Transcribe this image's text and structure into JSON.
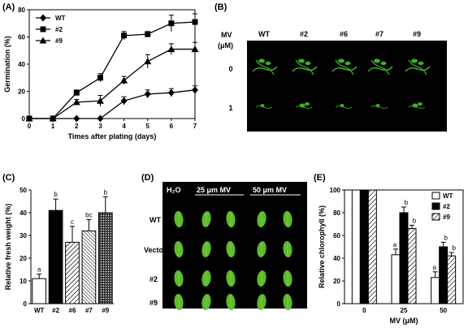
{
  "panel_labels": {
    "A": "(A)",
    "B": "(B)",
    "C": "(C)",
    "D": "(D)",
    "E": "(E)"
  },
  "chart_data": [
    {
      "panel": "(A)",
      "type": "line",
      "xlabel": "Times after plating (days)",
      "ylabel": "Germination (%)",
      "x": [
        0,
        1,
        2,
        3,
        4,
        5,
        6,
        7
      ],
      "xticks": [
        "0",
        "1",
        "2",
        "3",
        "4",
        "5",
        "6",
        "7"
      ],
      "yticks": [
        "0",
        "20",
        "40",
        "60",
        "80"
      ],
      "xlim": [
        0,
        7
      ],
      "ylim": [
        0,
        80
      ],
      "legend": "top-left",
      "series": [
        {
          "name": "WT",
          "marker": "diamond",
          "values": [
            0,
            0,
            0,
            0,
            13,
            18,
            19,
            21
          ],
          "errors": [
            0,
            0,
            0,
            0,
            3,
            3,
            3,
            3
          ]
        },
        {
          "name": "#2",
          "marker": "square",
          "values": [
            0,
            0,
            19,
            30,
            61,
            62,
            70,
            71
          ],
          "errors": [
            0,
            0,
            2,
            3,
            3,
            2,
            6,
            6
          ]
        },
        {
          "name": "#9",
          "marker": "triangle",
          "values": [
            0,
            0,
            12,
            13,
            28,
            42,
            51,
            51
          ],
          "errors": [
            0,
            0,
            2,
            4,
            3,
            5,
            4,
            5
          ]
        }
      ]
    },
    {
      "panel": "(C)",
      "type": "bar",
      "ylabel": "Relative fresh weight (%)",
      "categories": [
        "WT",
        "#2",
        "#6",
        "#7",
        "#9"
      ],
      "values": [
        11,
        41,
        27,
        32,
        40
      ],
      "errors": [
        2,
        5,
        7,
        5,
        7
      ],
      "letters": [
        "a",
        "b",
        "c",
        "bc",
        "b"
      ],
      "fills": [
        "white",
        "black",
        "hatch",
        "dense-hatch",
        "dots"
      ],
      "yticks": [
        "0",
        "10",
        "20",
        "30",
        "40",
        "50"
      ],
      "ylim": [
        0,
        50
      ]
    },
    {
      "panel": "(E)",
      "type": "bar",
      "xlabel": "MV (μM)",
      "ylabel": "Relative chlorophyll (%)",
      "categories": [
        "0",
        "25",
        "50"
      ],
      "series": [
        {
          "name": "WT",
          "fill": "white",
          "values": [
            100,
            43,
            23
          ],
          "errors": [
            0,
            5,
            5
          ],
          "letters": [
            "",
            "a",
            "a"
          ]
        },
        {
          "name": "#2",
          "fill": "black",
          "values": [
            100,
            80,
            50
          ],
          "errors": [
            0,
            5,
            4
          ],
          "letters": [
            "",
            "b",
            "b"
          ]
        },
        {
          "name": "#9",
          "fill": "hatch",
          "values": [
            100,
            66,
            42
          ],
          "errors": [
            0,
            3,
            3
          ],
          "letters": [
            "",
            "b",
            "b"
          ]
        }
      ],
      "yticks": [
        "0",
        "20",
        "40",
        "60",
        "80",
        "100"
      ],
      "ylim": [
        0,
        100
      ],
      "legend": "top-right"
    }
  ],
  "photo_b": {
    "mv_label": "MV",
    "unit_label": "(μM)",
    "columns": [
      "WT",
      "#2",
      "#6",
      "#7",
      "#9"
    ],
    "rows": [
      "0",
      "1"
    ],
    "background": "#000000",
    "seedling_color": "#3fae2a"
  },
  "photo_d": {
    "header_h2o": "H₂O",
    "header_25": "25 μm MV",
    "header_50": "50 μm MV",
    "rows": [
      "WT",
      "Vector",
      "#2",
      "#9"
    ],
    "background": "#000000",
    "leaf_color": "#5dbb2b"
  }
}
